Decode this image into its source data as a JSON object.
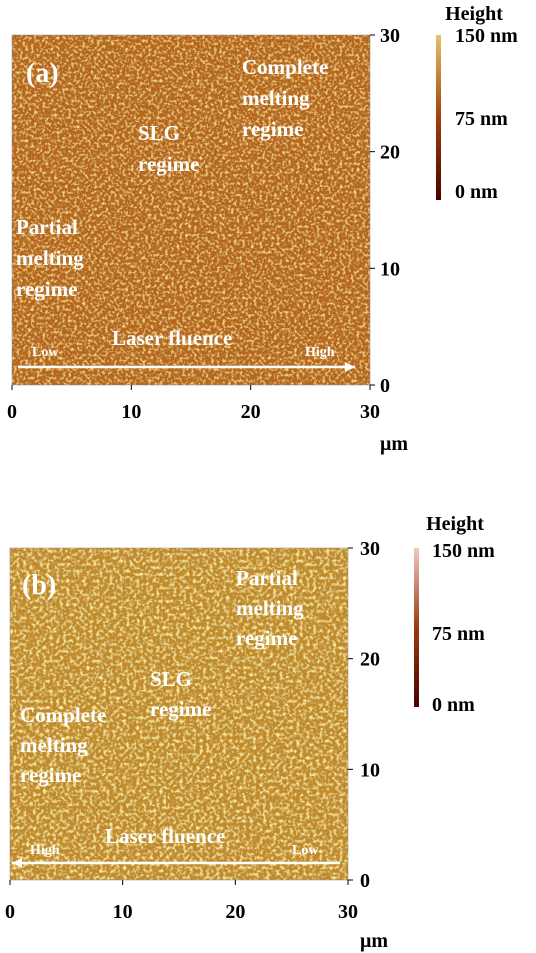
{
  "panels": [
    {
      "label": "(a)",
      "annotations": [
        [
          "Complete",
          "melting",
          "regime"
        ],
        [
          "SLG",
          "regime"
        ],
        [
          "Partial",
          "melting",
          "regime"
        ]
      ],
      "arrow": {
        "left": "Low",
        "center": "Laser fluence",
        "right": "High"
      },
      "axis": {
        "lim": [
          0,
          30
        ],
        "xticks": [
          0,
          10,
          20,
          30
        ],
        "yticks": [
          0,
          10,
          20,
          30
        ],
        "unit": "μm"
      },
      "colorbar": {
        "title": "Height",
        "labels": [
          "150 nm",
          "75 nm",
          "0 nm"
        ]
      }
    },
    {
      "label": "(b)",
      "annotations": [
        [
          "Partial",
          "melting",
          "regime"
        ],
        [
          "SLG",
          "regime"
        ],
        [
          "Complete",
          "melting",
          "regime"
        ]
      ],
      "arrow": {
        "left": "High",
        "center": "Laser fluence",
        "right": "Low"
      },
      "axis": {
        "lim": [
          0,
          30
        ],
        "xticks": [
          0,
          10,
          20,
          30
        ],
        "yticks": [
          0,
          10,
          20,
          30
        ],
        "unit": "μm"
      },
      "colorbar": {
        "title": "Height",
        "labels": [
          "150 nm",
          "75 nm",
          "0 nm"
        ]
      }
    }
  ]
}
